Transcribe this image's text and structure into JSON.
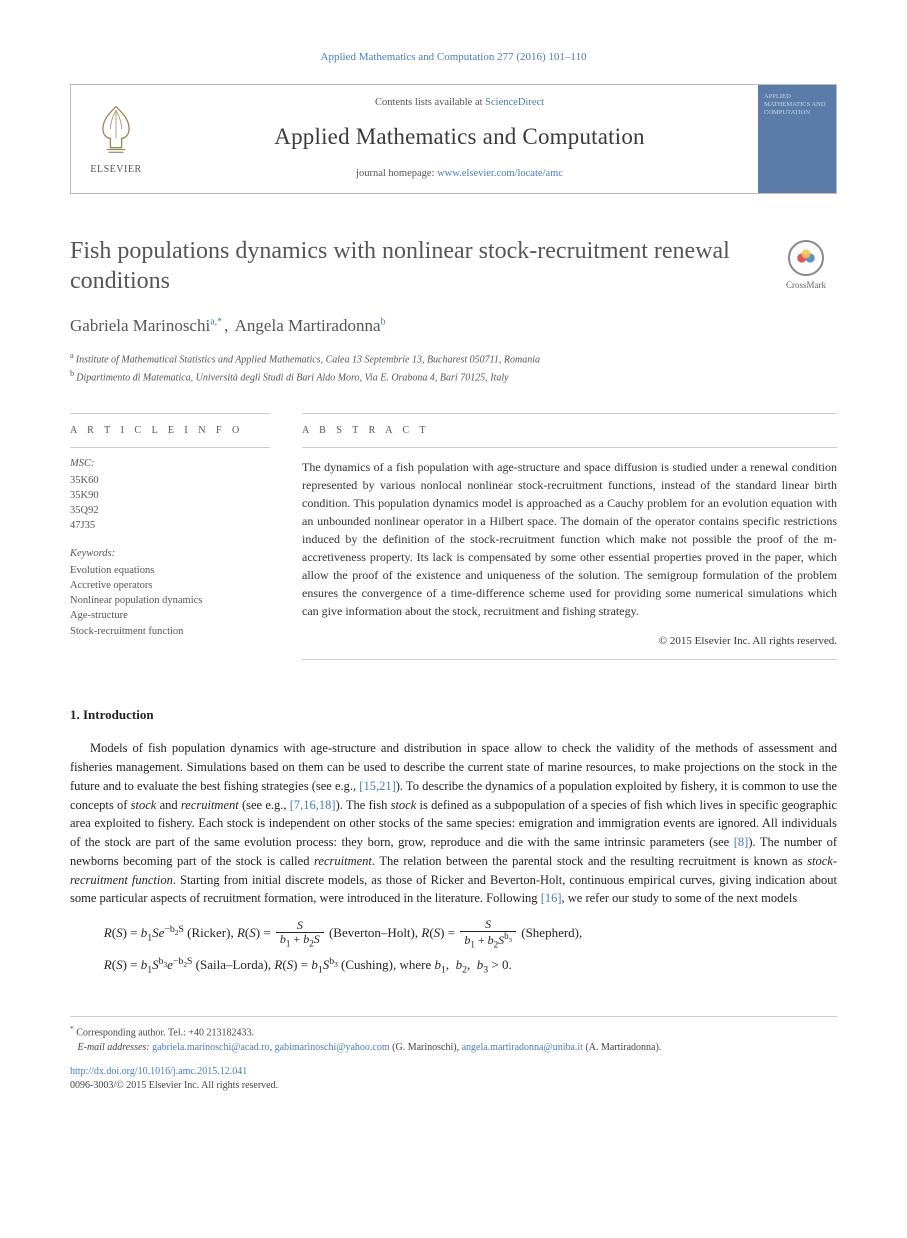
{
  "running_head": "Applied Mathematics and Computation 277 (2016) 101–110",
  "masthead": {
    "contents_prefix": "Contents lists available at ",
    "contents_link": "ScienceDirect",
    "journal": "Applied Mathematics and Computation",
    "homepage_prefix": "journal homepage: ",
    "homepage_link": "www.elsevier.com/locate/amc",
    "publisher": "ELSEVIER",
    "cover_label": "APPLIED MATHEMATICS AND COMPUTATION"
  },
  "crossmark": {
    "label": "CrossMark"
  },
  "title": "Fish populations dynamics with nonlinear stock-recruitment renewal conditions",
  "authors": [
    {
      "name": "Gabriela Marinoschi",
      "marks": "a,*"
    },
    {
      "name": "Angela Martiradonna",
      "marks": "b"
    }
  ],
  "affiliations": [
    {
      "mark": "a",
      "text": "Institute of Mathematical Statistics and Applied Mathematics, Calea 13 Septembrie 13, Bucharest 050711, Romania"
    },
    {
      "mark": "b",
      "text": "Dipartimento di Matematica, Università degli Studi di Bari Aldo Moro, Via E. Orabona 4, Bari 70125, Italy"
    }
  ],
  "article_info": {
    "head": "A R T I C L E   I N F O",
    "msc_label": "MSC:",
    "msc": [
      "35K60",
      "35K90",
      "35Q92",
      "47J35"
    ],
    "keywords_label": "Keywords:",
    "keywords": [
      "Evolution equations",
      "Accretive operators",
      "Nonlinear population dynamics",
      "Age-structure",
      "Stock-recruitment function"
    ]
  },
  "abstract": {
    "head": "A B S T R A C T",
    "body": "The dynamics of a fish population with age-structure and space diffusion is studied under a renewal condition represented by various nonlocal nonlinear stock-recruitment functions, instead of the standard linear birth condition. This population dynamics model is approached as a Cauchy problem for an evolution equation with an unbounded nonlinear operator in a Hilbert space. The domain of the operator contains specific restrictions induced by the definition of the stock-recruitment function which make not possible the proof of the m-accretiveness property. Its lack is compensated by some other essential properties proved in the paper, which allow the proof of the existence and uniqueness of the solution. The semigroup formulation of the problem ensures the convergence of a time-difference scheme used for providing some numerical simulations which can give information about the stock, recruitment and fishing strategy.",
    "copyright": "© 2015 Elsevier Inc. All rights reserved."
  },
  "intro": {
    "head": "1. Introduction",
    "para": "Models of fish population dynamics with age-structure and distribution in space allow to check the validity of the methods of assessment and fisheries management. Simulations based on them can be used to describe the current state of marine resources, to make projections on the stock in the future and to evaluate the best fishing strategies (see e.g., [15,21]). To describe the dynamics of a population exploited by fishery, it is common to use the concepts of stock and recruitment (see e.g., [7,16,18]). The fish stock is defined as a subpopulation of a species of fish which lives in specific geographic area exploited to fishery. Each stock is independent on other stocks of the same species: emigration and immigration events are ignored. All individuals of the stock are part of the same evolution process: they born, grow, reproduce and die with the same intrinsic parameters (see [8]). The number of newborns becoming part of the stock is called recruitment. The relation between the parental stock and the resulting recruitment is known as stock-recruitment function. Starting from initial discrete models, as those of Ricker and Beverton-Holt, continuous empirical curves, giving indication about some particular aspects of recruitment formation, were introduced in the literature. Following [16], we refer our study to some of the next models",
    "refs": {
      "r1": "[15,21]",
      "r2": "[7,16,18]",
      "r3": "[8]",
      "r4": "[16]"
    },
    "equations": {
      "ricker_label": " (Ricker), ",
      "bh_label": " (Beverton–Holt), ",
      "shepherd_label": " (Shepherd),",
      "saila_label": " (Saila–Lorda), ",
      "cushing_label": " (Cushing), where ",
      "tail": " > 0."
    }
  },
  "footnotes": {
    "corr": "Corresponding author. Tel.: +40 213182433.",
    "email_label": "E-mail addresses:",
    "emails": [
      {
        "addr": "gabriela.marinoschi@acad.ro",
        "who": ""
      },
      {
        "addr": "gabimarinoschi@yahoo.com",
        "who": " (G. Marinoschi), "
      },
      {
        "addr": "angela.martiradonna@uniba.it",
        "who": " (A. Martiradonna)."
      }
    ]
  },
  "doi": {
    "url": "http://dx.doi.org/10.1016/j.amc.2015.12.041",
    "line2": "0096-3003/© 2015 Elsevier Inc. All rights reserved."
  },
  "colors": {
    "link": "#4a7ab8",
    "text": "#333333",
    "muted": "#555555",
    "rule": "#cccccc",
    "cover_bg": "#5b7ca8"
  }
}
